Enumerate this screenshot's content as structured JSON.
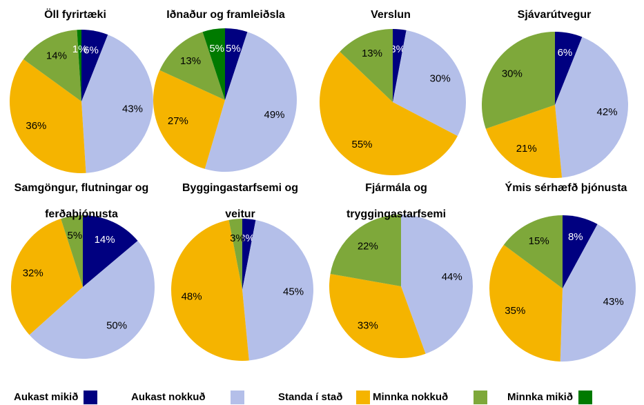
{
  "chart_data": [
    {
      "type": "pie",
      "title": "Öll fyrirtæki",
      "values": [
        6,
        43,
        36,
        14,
        1
      ],
      "value_labels": [
        "6%",
        "43%",
        "36%",
        "14%",
        "1%"
      ]
    },
    {
      "type": "pie",
      "title": "Iðnaður og framleiðsla",
      "values": [
        5,
        49,
        27,
        13,
        5
      ],
      "value_labels": [
        "5%",
        "49%",
        "27%",
        "13%",
        "5%"
      ]
    },
    {
      "type": "pie",
      "title": "Verslun",
      "values": [
        3,
        30,
        55,
        13,
        null
      ],
      "value_labels": [
        "3%",
        "30%",
        "55%",
        "13%",
        null
      ]
    },
    {
      "type": "pie",
      "title": "Sjávarútvegur",
      "values": [
        6,
        42,
        21,
        30,
        null
      ],
      "value_labels": [
        "6%",
        "42%",
        "21%",
        "30%",
        null
      ]
    },
    {
      "type": "pie",
      "title": "Samgöngur, flutningar og ferðaþjónusta",
      "values": [
        14,
        50,
        32,
        5,
        null
      ],
      "value_labels": [
        "14%",
        "50%",
        "32%",
        "5%",
        null
      ]
    },
    {
      "type": "pie",
      "title": "Byggingastarfsemi og veitur",
      "values": [
        3,
        45,
        48,
        3,
        null
      ],
      "value_labels": [
        "3%",
        "45%",
        "48%",
        "3%",
        null
      ]
    },
    {
      "type": "pie",
      "title": "Fjármála og tryggingastarfsemi",
      "values": [
        null,
        44,
        33,
        22,
        null
      ],
      "value_labels": [
        null,
        "44%",
        "33%",
        "22%",
        null
      ]
    },
    {
      "type": "pie",
      "title": "Ýmis sérhæfð þjónusta",
      "values": [
        8,
        43,
        35,
        15,
        null
      ],
      "value_labels": [
        "8%",
        "43%",
        "35%",
        "15%",
        null
      ]
    }
  ],
  "legend": {
    "series": [
      {
        "name": "Aukast mikið",
        "color": "#000080"
      },
      {
        "name": "Aukast nokkuð",
        "color": "#b4bfe9"
      },
      {
        "name": "Standa í stað",
        "color": "#f5b400"
      },
      {
        "name": "Minnka nokkuð",
        "color": "#7ea83a"
      },
      {
        "name": "Minnka mikið",
        "color": "#007a00"
      }
    ]
  }
}
